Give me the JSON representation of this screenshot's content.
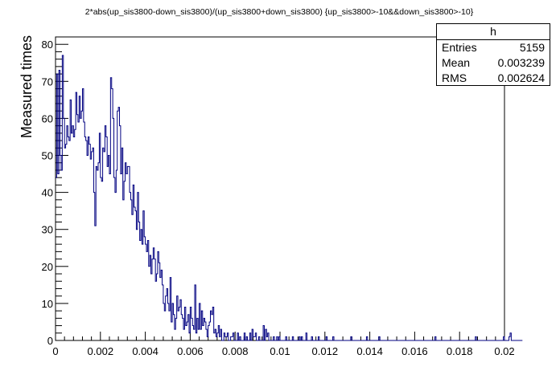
{
  "chart_data": {
    "type": "histogram",
    "title": "2*abs(up_sis3800-down_sis3800)/(up_sis3800+down_sis3800) {up_sis3800>-10&&down_sis3800>-10}",
    "xlabel": "",
    "ylabel": "Measured times",
    "xlim": [
      0,
      0.02
    ],
    "ylim": [
      0,
      82
    ],
    "x_ticks": [
      "0",
      "0.002",
      "0.004",
      "0.006",
      "0.008",
      "0.01",
      "0.012",
      "0.014",
      "0.016",
      "0.018",
      "0.02"
    ],
    "y_ticks": [
      "0",
      "10",
      "20",
      "30",
      "40",
      "50",
      "60",
      "70",
      "80"
    ],
    "line_color": "#000080",
    "bin_width": 5e-05,
    "counts": [
      44,
      72,
      45,
      73,
      50,
      46,
      77,
      60,
      52,
      53,
      58,
      55,
      54,
      65,
      56,
      58,
      55,
      57,
      67,
      61,
      59,
      66,
      60,
      62,
      68,
      59,
      55,
      54,
      50,
      55,
      53,
      49,
      51,
      52,
      40,
      31,
      47,
      46,
      48,
      56,
      44,
      43,
      52,
      51,
      58,
      55,
      47,
      50,
      45,
      71,
      68,
      60,
      44,
      40,
      46,
      62,
      63,
      58,
      45,
      52,
      38,
      43,
      48,
      45,
      47,
      47,
      40,
      38,
      34,
      42,
      36,
      35,
      30,
      40,
      32,
      27,
      30,
      26,
      35,
      28,
      26,
      24,
      27,
      20,
      23,
      18,
      22,
      25,
      22,
      16,
      18,
      24,
      21,
      17,
      19,
      15,
      10,
      8,
      12,
      14,
      10,
      8,
      17,
      5,
      10,
      7,
      3,
      6,
      12,
      8,
      9,
      11,
      7,
      6,
      3,
      9,
      4,
      5,
      7,
      2,
      9,
      6,
      4,
      3,
      15,
      2,
      6,
      3,
      10,
      3,
      8,
      4,
      6,
      5,
      3,
      1,
      4,
      5,
      8,
      7,
      9,
      2,
      3,
      1,
      2,
      4,
      1,
      3,
      0,
      0,
      2,
      1,
      1,
      2,
      0,
      0,
      1,
      1,
      2,
      0,
      0,
      0,
      2,
      0,
      1,
      0,
      0,
      0,
      2,
      0,
      1,
      0,
      0,
      2,
      0,
      3,
      1,
      1,
      2,
      0,
      0,
      1,
      0,
      0,
      0,
      4,
      0,
      3,
      1,
      2,
      0,
      0,
      0,
      0,
      1,
      0,
      0,
      1,
      0,
      1,
      0,
      0,
      0,
      0,
      0,
      1,
      0,
      0,
      0,
      0,
      0,
      1,
      0,
      0,
      0,
      0,
      0,
      1,
      0,
      1,
      0,
      0,
      0,
      2,
      0,
      0,
      0,
      0,
      1,
      0,
      0,
      0,
      0,
      0,
      1,
      0,
      0,
      0,
      0,
      0,
      0,
      1,
      0,
      0,
      0,
      0,
      0,
      1,
      0,
      0,
      0,
      0,
      0,
      0,
      0,
      0,
      0,
      0,
      0,
      0,
      0,
      0,
      0,
      1,
      0,
      0,
      0,
      0,
      0,
      0,
      0,
      0,
      0,
      0,
      0,
      0,
      0,
      1,
      0,
      0,
      0,
      0,
      0,
      0,
      0,
      0,
      0,
      0,
      1,
      0,
      0,
      0,
      0,
      0,
      0,
      0,
      0,
      0,
      0,
      0,
      0,
      0,
      0,
      0,
      0,
      0,
      0,
      0,
      0,
      0,
      0,
      0,
      0,
      0,
      0,
      0,
      0,
      0,
      0,
      0,
      0,
      0,
      0,
      0,
      0,
      0,
      0,
      0,
      0,
      0,
      0,
      0,
      0,
      0,
      0,
      0,
      0,
      0,
      1,
      0,
      0,
      0,
      0,
      0,
      0,
      0,
      0,
      0,
      0,
      0,
      0,
      0,
      0,
      0,
      0,
      0,
      0,
      0,
      0,
      0,
      0,
      0,
      0,
      0,
      0,
      0,
      0,
      0,
      0,
      0,
      0,
      0,
      0,
      0,
      1,
      0,
      0,
      0,
      0,
      0,
      0,
      0,
      0,
      0,
      0,
      0,
      0,
      0,
      0,
      0,
      0,
      0,
      0,
      0,
      0,
      0,
      0,
      0,
      0,
      1,
      0,
      0,
      0,
      0,
      1,
      2,
      0,
      0,
      0,
      0,
      0,
      0,
      0,
      0,
      0,
      0
    ],
    "stats": {
      "name": "h",
      "rows": [
        {
          "label": "Entries",
          "value": "5159"
        },
        {
          "label": "Mean",
          "value": "0.003239"
        },
        {
          "label": "RMS",
          "value": "0.002624"
        }
      ]
    }
  }
}
